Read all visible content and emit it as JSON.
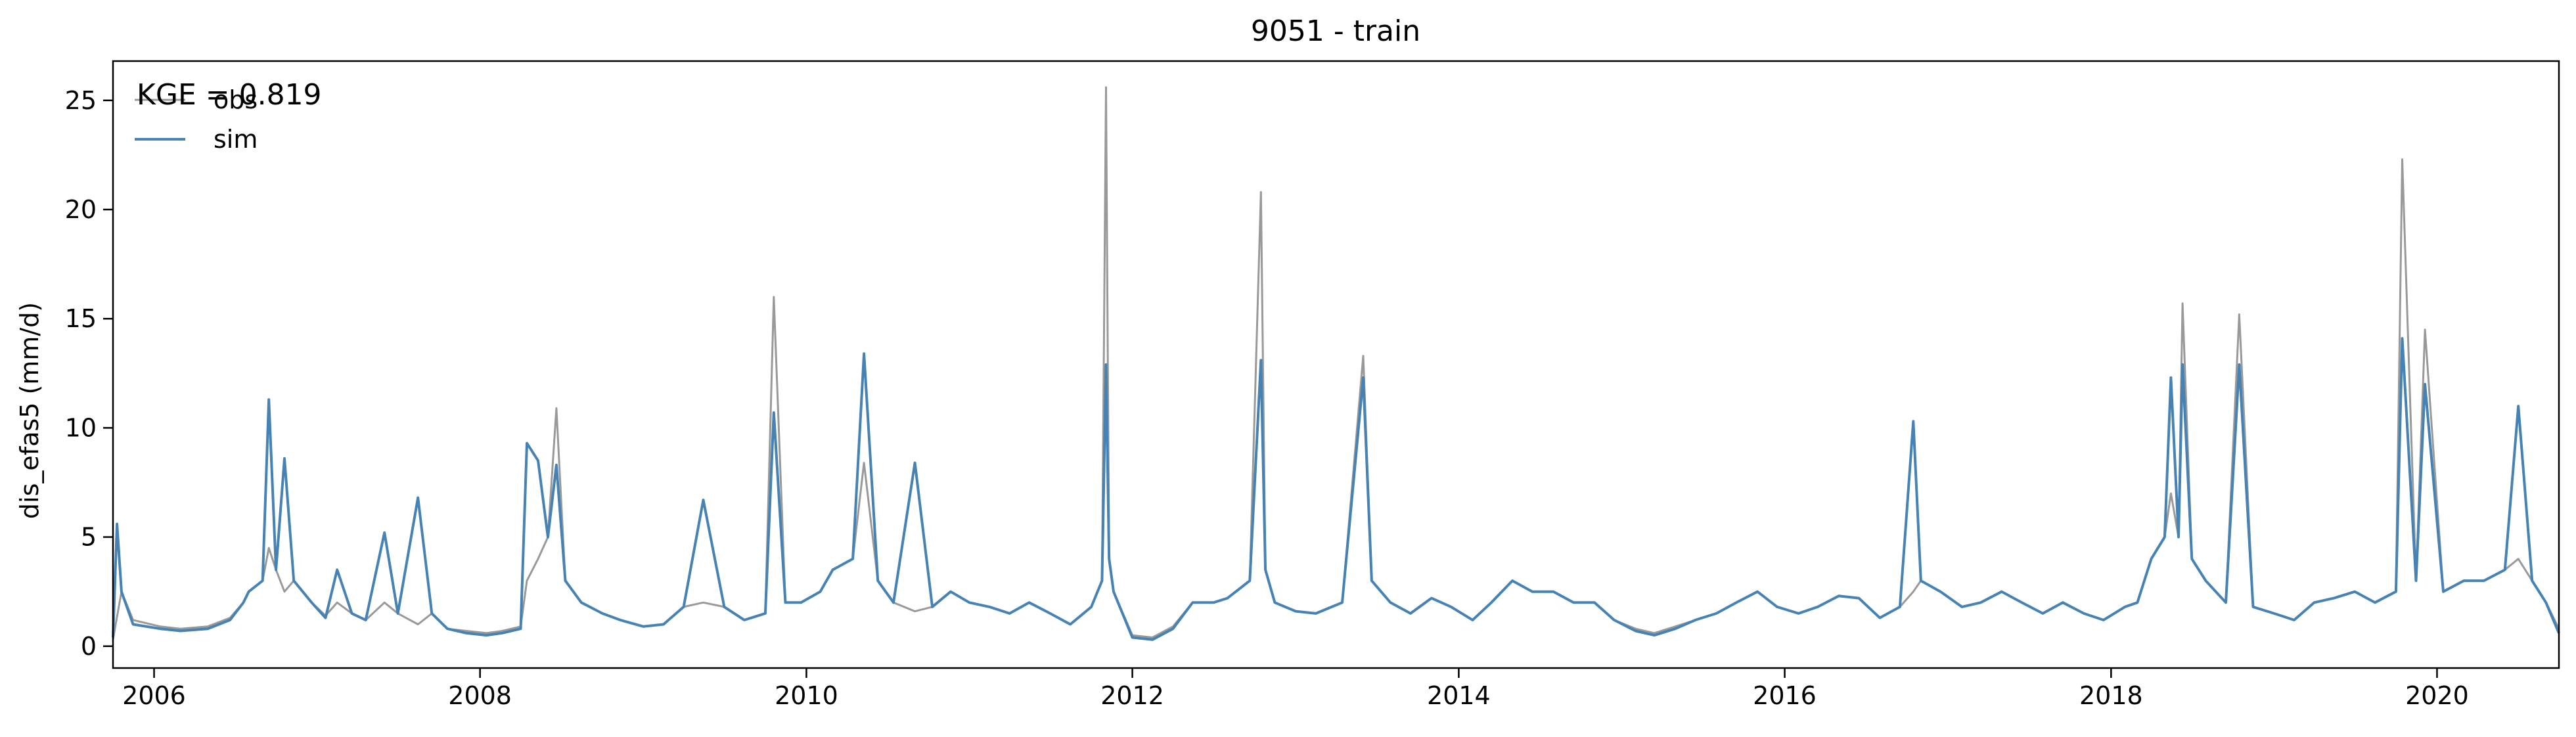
{
  "chart_data": {
    "type": "line",
    "title": "9051 - train",
    "xlabel": "",
    "ylabel": "dis_efas5 (mm/d)",
    "annotation": "KGE = 0.819",
    "xlim": [
      "2005-10-01",
      "2020-09-30"
    ],
    "ylim": [
      -1.0,
      26.8
    ],
    "x_ticks": [
      "2006",
      "2008",
      "2010",
      "2012",
      "2014",
      "2016",
      "2018",
      "2020"
    ],
    "y_ticks": [
      "0",
      "5",
      "10",
      "15",
      "20",
      "25"
    ],
    "grid": false,
    "legend": {
      "position": "top-left",
      "entries": [
        "obs",
        "sim"
      ]
    },
    "series": [
      {
        "name": "obs",
        "color": "#999999",
        "x": [
          "2005-10-01",
          "2005-10-20",
          "2005-11-15",
          "2006-01-15",
          "2006-03-01",
          "2006-05-01",
          "2006-06-20",
          "2006-07-20",
          "2006-08-01",
          "2006-09-01",
          "2006-09-15",
          "2006-10-01",
          "2006-10-20",
          "2006-11-10",
          "2006-12-20",
          "2007-01-20",
          "2007-02-15",
          "2007-03-20",
          "2007-04-20",
          "2007-06-01",
          "2007-07-01",
          "2007-08-15",
          "2007-09-15",
          "2007-10-20",
          "2007-12-01",
          "2008-01-15",
          "2008-02-20",
          "2008-04-01",
          "2008-04-15",
          "2008-05-10",
          "2008-06-01",
          "2008-06-20",
          "2008-07-10",
          "2008-08-15",
          "2008-10-01",
          "2008-11-10",
          "2009-01-01",
          "2009-02-15",
          "2009-04-01",
          "2009-05-15",
          "2009-07-01",
          "2009-08-15",
          "2009-10-01",
          "2009-10-20",
          "2009-11-15",
          "2009-12-20",
          "2010-02-01",
          "2010-03-01",
          "2010-04-15",
          "2010-05-10",
          "2010-06-10",
          "2010-07-15",
          "2010-09-01",
          "2010-10-10",
          "2010-11-20",
          "2011-01-01",
          "2011-02-15",
          "2011-04-01",
          "2011-05-15",
          "2011-07-01",
          "2011-08-15",
          "2011-10-01",
          "2011-10-25",
          "2011-11-03",
          "2011-11-10",
          "2011-11-20",
          "2012-01-01",
          "2012-02-15",
          "2012-04-01",
          "2012-05-15",
          "2012-07-01",
          "2012-08-01",
          "2012-09-20",
          "2012-10-15",
          "2012-10-25",
          "2012-11-15",
          "2013-01-01",
          "2013-02-15",
          "2013-04-15",
          "2013-06-01",
          "2013-06-20",
          "2013-08-01",
          "2013-09-15",
          "2013-11-01",
          "2013-12-15",
          "2014-02-01",
          "2014-03-15",
          "2014-05-01",
          "2014-06-15",
          "2014-08-01",
          "2014-09-15",
          "2014-11-01",
          "2014-12-15",
          "2015-02-01",
          "2015-03-15",
          "2015-05-01",
          "2015-06-15",
          "2015-08-01",
          "2015-09-15",
          "2015-11-01",
          "2015-12-15",
          "2016-02-01",
          "2016-03-15",
          "2016-05-01",
          "2016-06-15",
          "2016-08-01",
          "2016-09-15",
          "2016-10-15",
          "2016-11-01",
          "2016-12-15",
          "2017-02-01",
          "2017-03-15",
          "2017-05-01",
          "2017-06-15",
          "2017-08-01",
          "2017-09-15",
          "2017-11-01",
          "2017-12-15",
          "2018-02-01",
          "2018-03-01",
          "2018-04-01",
          "2018-05-01",
          "2018-05-15",
          "2018-06-01",
          "2018-06-10",
          "2018-07-01",
          "2018-08-01",
          "2018-09-15",
          "2018-10-15",
          "2018-11-15",
          "2019-01-01",
          "2019-02-15",
          "2019-04-01",
          "2019-05-15",
          "2019-07-01",
          "2019-08-15",
          "2019-10-01",
          "2019-10-15",
          "2019-11-15",
          "2019-12-05",
          "2020-01-15",
          "2020-03-01",
          "2020-04-15",
          "2020-06-01",
          "2020-07-01",
          "2020-08-01",
          "2020-09-01",
          "2020-09-30"
        ],
        "y": [
          0.3,
          2.5,
          1.2,
          0.9,
          0.8,
          0.9,
          1.3,
          2.0,
          2.5,
          3.0,
          4.5,
          3.5,
          2.5,
          3.0,
          2.0,
          1.4,
          2.0,
          1.5,
          1.2,
          2.0,
          1.5,
          1.0,
          1.5,
          0.8,
          0.7,
          0.6,
          0.7,
          0.9,
          3.0,
          4.0,
          5.0,
          10.9,
          3.0,
          2.0,
          1.5,
          1.2,
          0.9,
          1.0,
          1.8,
          2.0,
          1.8,
          1.2,
          1.5,
          16.0,
          2.0,
          2.0,
          2.5,
          3.5,
          4.0,
          8.4,
          3.0,
          2.0,
          1.6,
          1.8,
          2.5,
          2.0,
          1.8,
          1.5,
          2.0,
          1.5,
          1.0,
          1.8,
          3.0,
          25.6,
          4.0,
          2.5,
          0.5,
          0.4,
          0.9,
          2.0,
          2.0,
          2.2,
          3.0,
          20.8,
          3.5,
          2.0,
          1.6,
          1.5,
          2.0,
          13.3,
          3.0,
          2.0,
          1.5,
          2.2,
          1.8,
          1.2,
          2.0,
          3.0,
          2.5,
          2.5,
          2.0,
          2.0,
          1.2,
          0.8,
          0.6,
          0.9,
          1.2,
          1.5,
          2.0,
          2.5,
          1.8,
          1.5,
          1.8,
          2.3,
          2.2,
          1.3,
          1.8,
          2.5,
          3.0,
          2.5,
          1.8,
          2.0,
          2.5,
          2.0,
          1.5,
          2.0,
          1.5,
          1.2,
          1.8,
          2.0,
          4.0,
          5.0,
          7.0,
          5.0,
          15.7,
          4.0,
          3.0,
          2.0,
          15.2,
          1.8,
          1.5,
          1.2,
          2.0,
          2.2,
          2.5,
          2.0,
          2.5,
          22.3,
          3.0,
          14.5,
          2.5,
          3.0,
          3.0,
          3.5,
          4.0,
          3.0,
          2.0,
          0.8
        ]
      },
      {
        "name": "sim",
        "color": "#4682b4",
        "x": [
          "2005-10-01",
          "2005-10-10",
          "2005-10-20",
          "2005-11-15",
          "2006-01-15",
          "2006-03-01",
          "2006-05-01",
          "2006-06-20",
          "2006-07-20",
          "2006-08-01",
          "2006-09-01",
          "2006-09-15",
          "2006-10-01",
          "2006-10-20",
          "2006-11-10",
          "2006-12-20",
          "2007-01-20",
          "2007-02-15",
          "2007-03-20",
          "2007-04-20",
          "2007-06-01",
          "2007-07-01",
          "2007-08-15",
          "2007-09-15",
          "2007-10-20",
          "2007-12-01",
          "2008-01-15",
          "2008-02-20",
          "2008-04-01",
          "2008-04-15",
          "2008-05-10",
          "2008-06-01",
          "2008-06-20",
          "2008-07-10",
          "2008-08-15",
          "2008-10-01",
          "2008-11-10",
          "2009-01-01",
          "2009-02-15",
          "2009-04-01",
          "2009-05-15",
          "2009-07-01",
          "2009-08-15",
          "2009-10-01",
          "2009-10-20",
          "2009-11-15",
          "2009-12-20",
          "2010-02-01",
          "2010-03-01",
          "2010-04-15",
          "2010-05-10",
          "2010-06-10",
          "2010-07-15",
          "2010-09-01",
          "2010-10-10",
          "2010-11-20",
          "2011-01-01",
          "2011-02-15",
          "2011-04-01",
          "2011-05-15",
          "2011-07-01",
          "2011-08-15",
          "2011-10-01",
          "2011-10-25",
          "2011-11-03",
          "2011-11-10",
          "2011-11-20",
          "2012-01-01",
          "2012-02-15",
          "2012-04-01",
          "2012-05-15",
          "2012-07-01",
          "2012-08-01",
          "2012-09-20",
          "2012-10-15",
          "2012-10-25",
          "2012-11-15",
          "2013-01-01",
          "2013-02-15",
          "2013-04-15",
          "2013-06-01",
          "2013-06-20",
          "2013-08-01",
          "2013-09-15",
          "2013-11-01",
          "2013-12-15",
          "2014-02-01",
          "2014-03-15",
          "2014-05-01",
          "2014-06-15",
          "2014-08-01",
          "2014-09-15",
          "2014-11-01",
          "2014-12-15",
          "2015-02-01",
          "2015-03-15",
          "2015-05-01",
          "2015-06-15",
          "2015-08-01",
          "2015-09-15",
          "2015-11-01",
          "2015-12-15",
          "2016-02-01",
          "2016-03-15",
          "2016-05-01",
          "2016-06-15",
          "2016-08-01",
          "2016-09-15",
          "2016-10-15",
          "2016-11-01",
          "2016-12-15",
          "2017-02-01",
          "2017-03-15",
          "2017-05-01",
          "2017-06-15",
          "2017-08-01",
          "2017-09-15",
          "2017-11-01",
          "2017-12-15",
          "2018-02-01",
          "2018-03-01",
          "2018-04-01",
          "2018-05-01",
          "2018-05-15",
          "2018-06-01",
          "2018-06-10",
          "2018-07-01",
          "2018-08-01",
          "2018-09-15",
          "2018-10-15",
          "2018-11-15",
          "2019-01-01",
          "2019-02-15",
          "2019-04-01",
          "2019-05-15",
          "2019-07-01",
          "2019-08-15",
          "2019-10-01",
          "2019-10-15",
          "2019-11-15",
          "2019-12-05",
          "2020-01-15",
          "2020-03-01",
          "2020-04-15",
          "2020-06-01",
          "2020-07-01",
          "2020-08-01",
          "2020-09-01",
          "2020-09-30"
        ],
        "y": [
          0.4,
          5.6,
          2.5,
          1.0,
          0.8,
          0.7,
          0.8,
          1.2,
          2.0,
          2.5,
          3.0,
          11.3,
          3.5,
          8.6,
          3.0,
          2.0,
          1.3,
          3.5,
          1.5,
          1.2,
          5.2,
          1.5,
          6.8,
          1.5,
          0.8,
          0.6,
          0.5,
          0.6,
          0.8,
          9.3,
          8.5,
          5.0,
          8.3,
          3.0,
          2.0,
          1.5,
          1.2,
          0.9,
          1.0,
          1.8,
          6.7,
          1.8,
          1.2,
          1.5,
          10.7,
          2.0,
          2.0,
          2.5,
          3.5,
          4.0,
          13.4,
          3.0,
          2.0,
          8.4,
          1.8,
          2.5,
          2.0,
          1.8,
          1.5,
          2.0,
          1.5,
          1.0,
          1.8,
          3.0,
          12.9,
          4.0,
          2.5,
          0.4,
          0.3,
          0.8,
          2.0,
          2.0,
          2.2,
          3.0,
          13.1,
          3.5,
          2.0,
          1.6,
          1.5,
          2.0,
          12.3,
          3.0,
          2.0,
          1.5,
          2.2,
          1.8,
          1.2,
          2.0,
          3.0,
          2.5,
          2.5,
          2.0,
          2.0,
          1.2,
          0.7,
          0.5,
          0.8,
          1.2,
          1.5,
          2.0,
          2.5,
          1.8,
          1.5,
          1.8,
          2.3,
          2.2,
          1.3,
          1.8,
          10.3,
          3.0,
          2.5,
          1.8,
          2.0,
          2.5,
          2.0,
          1.5,
          2.0,
          1.5,
          1.2,
          1.8,
          2.0,
          4.0,
          5.0,
          12.3,
          5.0,
          12.9,
          4.0,
          3.0,
          2.0,
          12.9,
          1.8,
          1.5,
          1.2,
          2.0,
          2.2,
          2.5,
          2.0,
          2.5,
          14.1,
          3.0,
          12.0,
          2.5,
          3.0,
          3.0,
          3.5,
          11.0,
          3.0,
          2.0,
          0.6
        ]
      }
    ]
  }
}
